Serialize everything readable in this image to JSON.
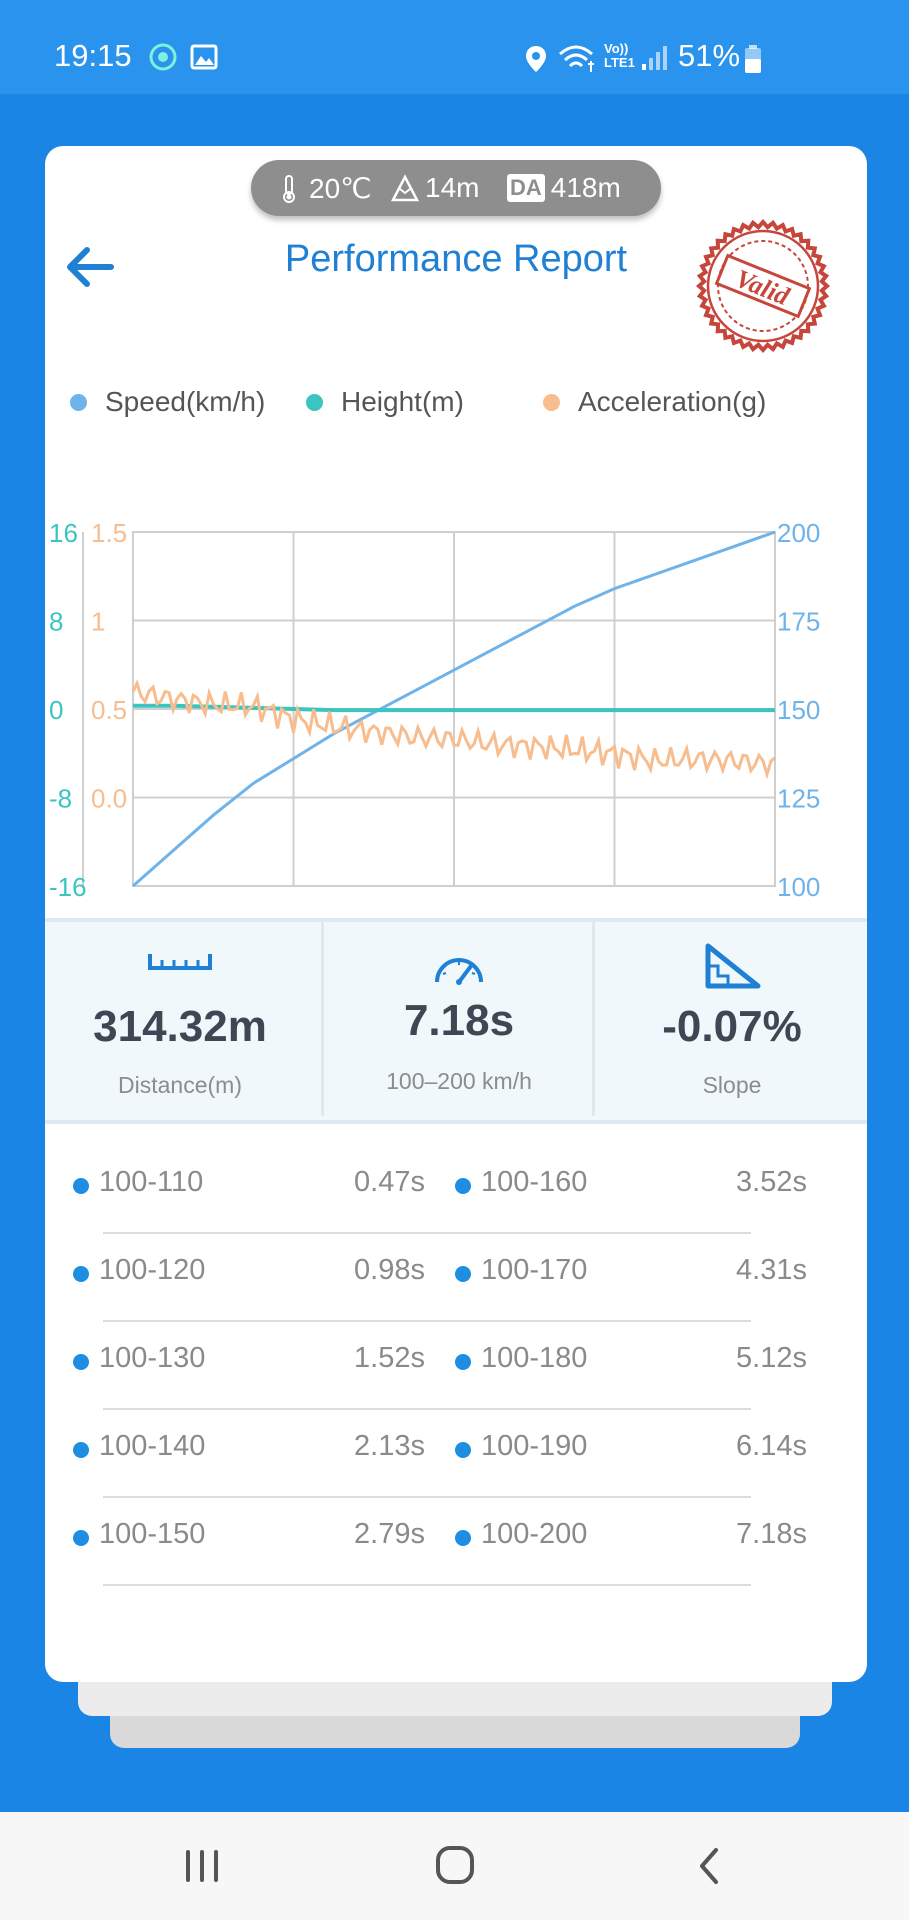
{
  "status_bar": {
    "time": "19:15",
    "network": "Vo)) LTE1",
    "battery": "51%"
  },
  "env": {
    "temperature": "20℃",
    "altitude": "14m",
    "da_badge": "DA",
    "density_altitude": "418m"
  },
  "header": {
    "title": "Performance Report",
    "stamp": "Valid"
  },
  "legend": {
    "speed": "Speed(km/h)",
    "height": "Height(m)",
    "acceleration": "Acceleration(g)"
  },
  "colors": {
    "speed": "#6eb3ea",
    "height": "#3cc4c0",
    "acceleration": "#f8bd8e",
    "accent": "#1f80d4"
  },
  "chart_data": {
    "type": "line",
    "x": [
      0,
      1,
      2,
      3,
      4,
      5,
      6,
      7,
      8,
      9,
      10,
      11,
      12,
      13,
      14,
      15,
      16
    ],
    "left_axes": [
      {
        "name": "Height(m)",
        "ticks": [
          "16",
          "8",
          "0",
          "-8",
          "-16"
        ],
        "ylim": [
          -16,
          16
        ]
      },
      {
        "name": "Acceleration(g)",
        "ticks": [
          "1.5",
          "1",
          "0.5",
          "0.0"
        ],
        "ylim": [
          -0.45,
          1.5
        ]
      }
    ],
    "right_axis": {
      "name": "Speed(km/h)",
      "ticks": [
        "200",
        "175",
        "150",
        "125",
        "100"
      ],
      "ylim": [
        100,
        200
      ]
    },
    "grid": true,
    "series": [
      {
        "name": "Speed(km/h)",
        "axis": "right",
        "values": [
          100,
          110,
          120,
          129,
          136,
          143,
          149,
          155,
          161,
          167,
          173,
          179,
          184,
          188,
          192,
          196,
          200
        ]
      },
      {
        "name": "Height(m)",
        "axis": "left-0",
        "values": [
          0.3,
          0.3,
          0.2,
          0.1,
          0.0,
          -0.1,
          -0.1,
          -0.1,
          -0.1,
          -0.1,
          -0.1,
          -0.1,
          -0.1,
          -0.1,
          -0.1,
          -0.1,
          -0.1
        ]
      },
      {
        "name": "Acceleration(g)",
        "axis": "left-1",
        "values": [
          0.62,
          0.58,
          0.55,
          0.54,
          0.47,
          0.43,
          0.4,
          0.37,
          0.36,
          0.33,
          0.32,
          0.3,
          0.28,
          0.24,
          0.25,
          0.24,
          0.22
        ]
      }
    ]
  },
  "stats": [
    {
      "value": "314.32m",
      "label": "Distance(m)",
      "icon": "ruler-icon"
    },
    {
      "value": "7.18s",
      "label": "100–200 km/h",
      "icon": "speedometer-icon"
    },
    {
      "value": "-0.07%",
      "label": "Slope",
      "icon": "slope-icon"
    }
  ],
  "splits": [
    {
      "range": "100-110",
      "time": "0.47s"
    },
    {
      "range": "100-120",
      "time": "0.98s"
    },
    {
      "range": "100-130",
      "time": "1.52s"
    },
    {
      "range": "100-140",
      "time": "2.13s"
    },
    {
      "range": "100-150",
      "time": "2.79s"
    },
    {
      "range": "100-160",
      "time": "3.52s"
    },
    {
      "range": "100-170",
      "time": "4.31s"
    },
    {
      "range": "100-180",
      "time": "5.12s"
    },
    {
      "range": "100-190",
      "time": "6.14s"
    },
    {
      "range": "100-200",
      "time": "7.18s"
    }
  ]
}
